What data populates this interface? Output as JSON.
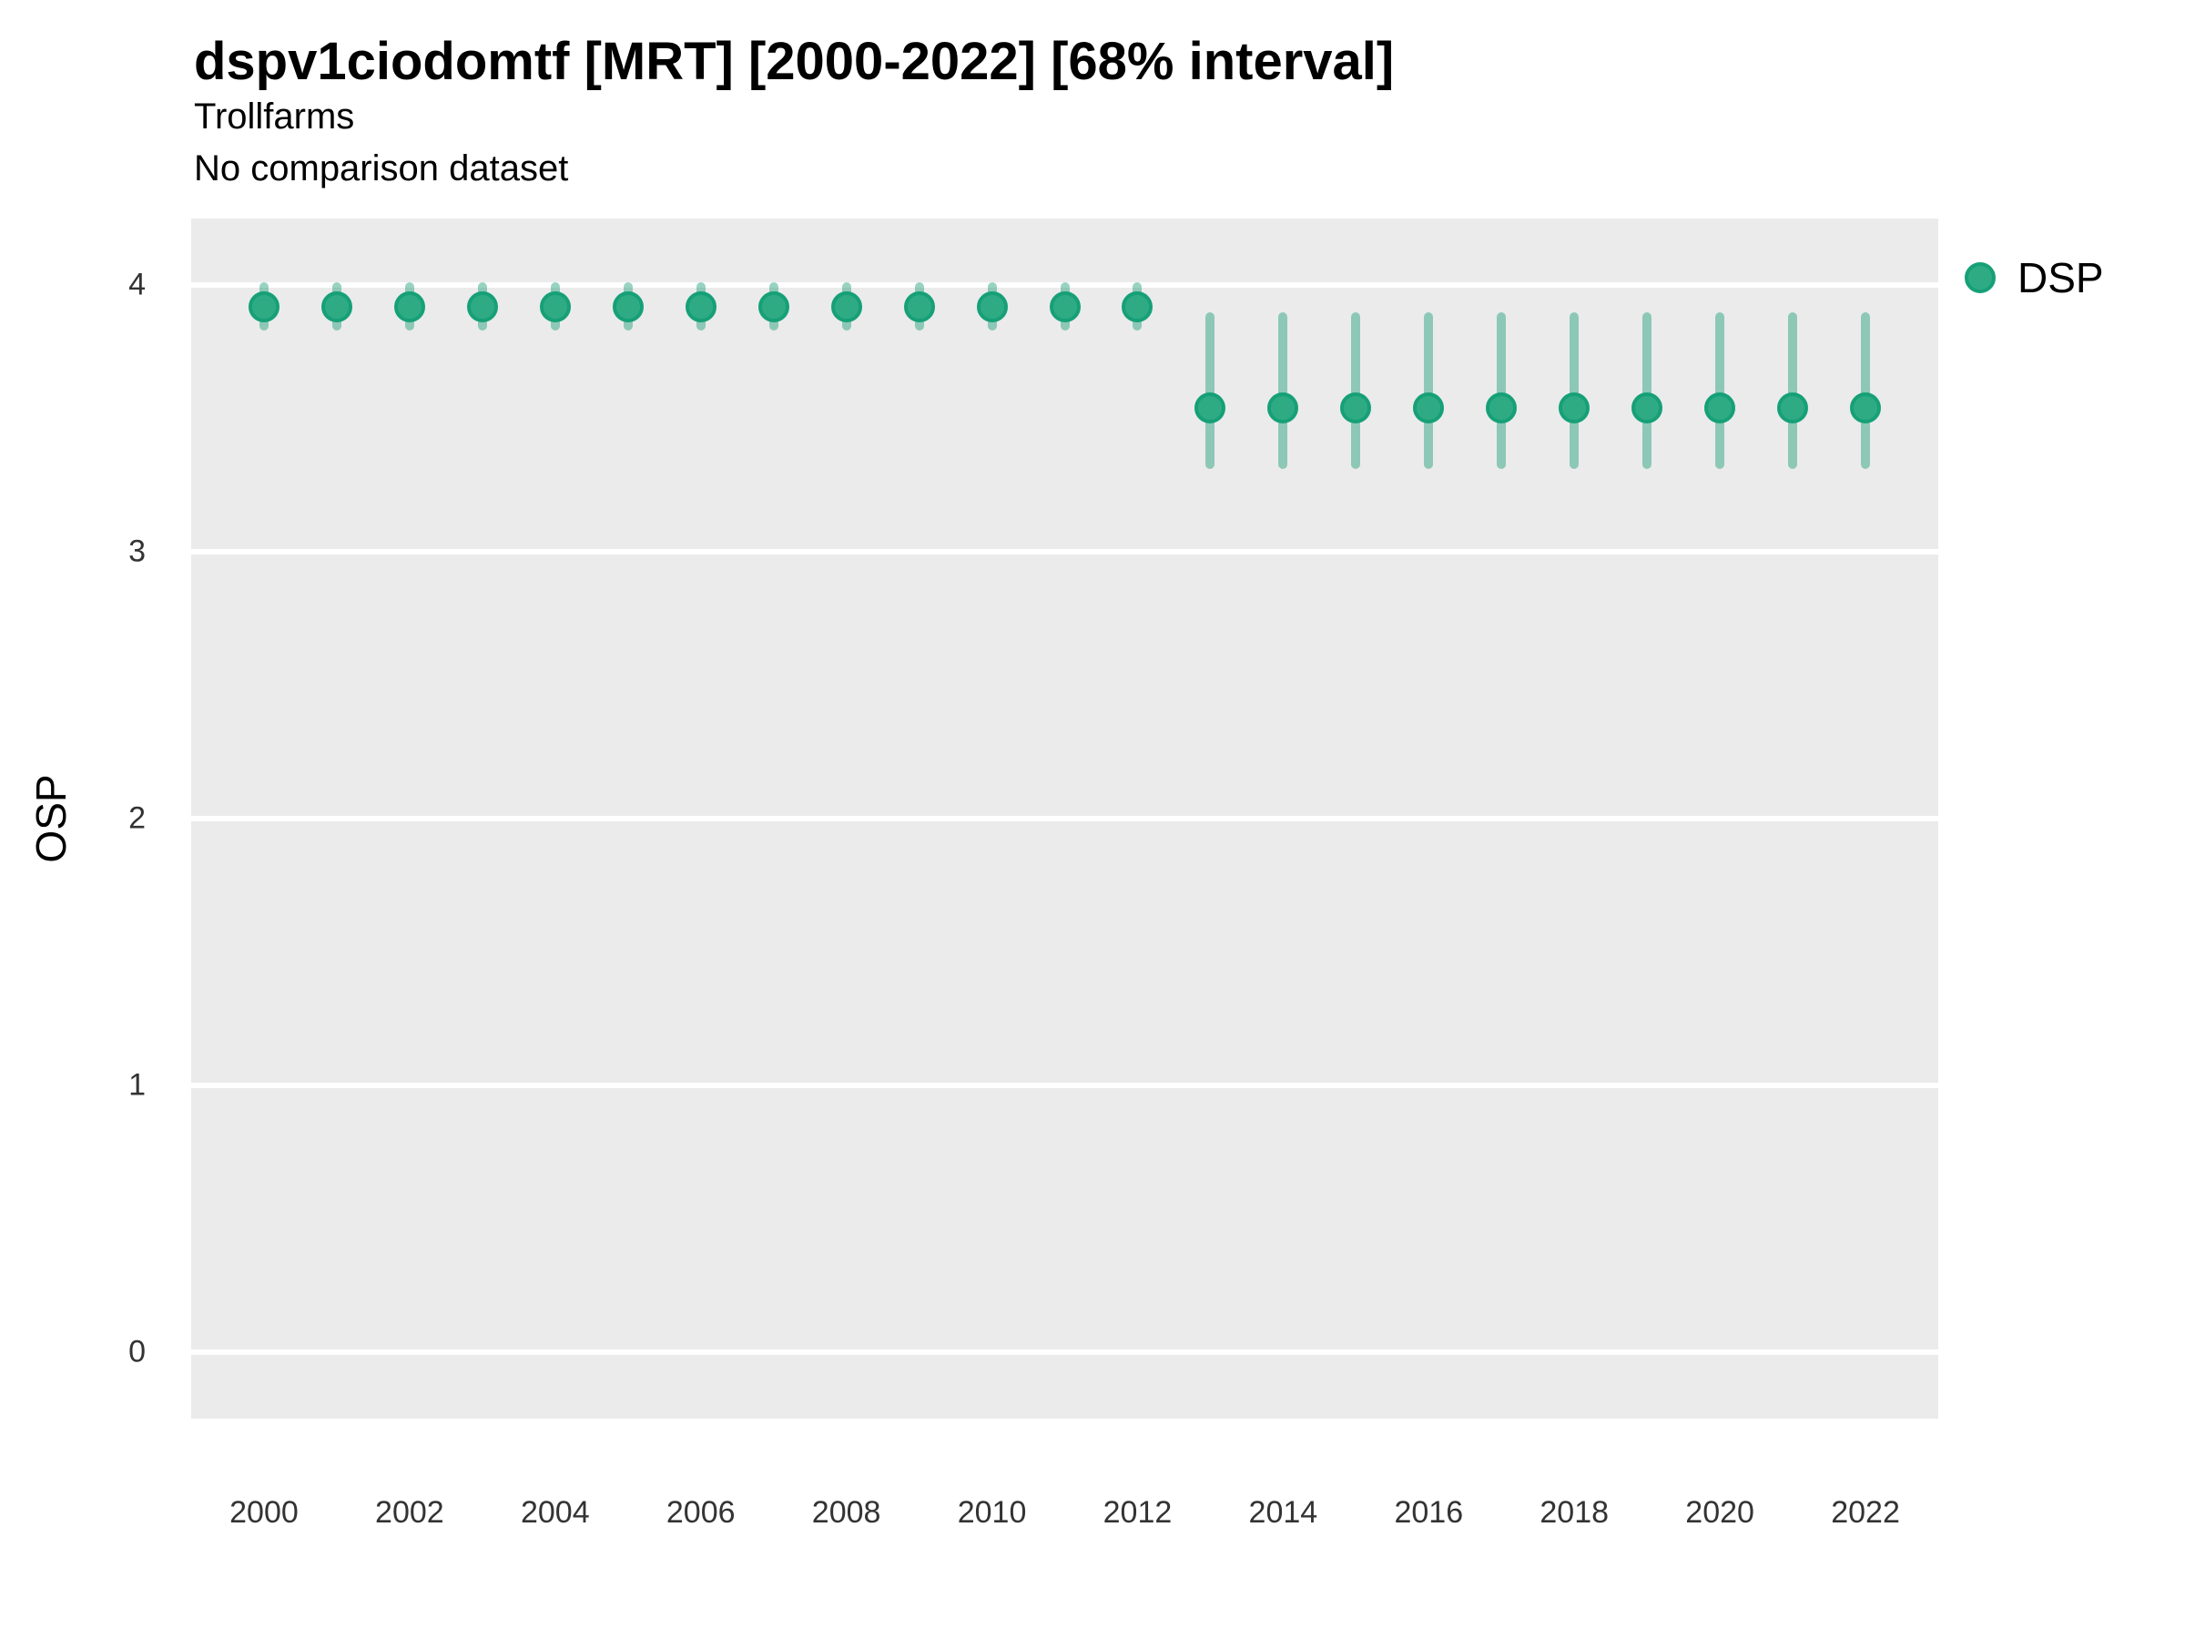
{
  "header": {
    "title": "dspv1ciodomtf [MRT] [2000-2022] [68% interval]",
    "subtitle": "Trollfarms",
    "note": "No comparison dataset"
  },
  "legend": {
    "position": "right-top",
    "items": [
      {
        "label": "DSP",
        "fill": "#2FAB84",
        "stroke": "#16A077"
      }
    ]
  },
  "colors": {
    "panel_background": "#EBEBEB",
    "gridline": "#FFFFFF",
    "point_fill": "#2FAB84",
    "point_stroke": "#16A077",
    "errorbar": "rgba(27,158,119,0.45)",
    "tick_text": "#333333",
    "title_text": "#000000"
  },
  "chart_data": {
    "type": "scatter",
    "title": "dspv1ciodomtf [MRT] [2000-2022] [68% interval]",
    "subtitle": "Trollfarms",
    "note": "No comparison dataset",
    "xlabel": "",
    "ylabel": "OSP",
    "x": [
      2000,
      2001,
      2002,
      2003,
      2004,
      2005,
      2006,
      2007,
      2008,
      2009,
      2010,
      2011,
      2012,
      2013,
      2014,
      2015,
      2016,
      2017,
      2018,
      2019,
      2020,
      2021,
      2022
    ],
    "series": [
      {
        "name": "DSP",
        "values": [
          3.92,
          3.92,
          3.92,
          3.92,
          3.92,
          3.92,
          3.92,
          3.92,
          3.92,
          3.92,
          3.92,
          3.92,
          3.92,
          3.54,
          3.54,
          3.54,
          3.54,
          3.54,
          3.54,
          3.54,
          3.54,
          3.54,
          3.54
        ],
        "interval_low": [
          3.83,
          3.83,
          3.83,
          3.83,
          3.83,
          3.83,
          3.83,
          3.83,
          3.83,
          3.83,
          3.83,
          3.83,
          3.83,
          3.31,
          3.31,
          3.31,
          3.31,
          3.31,
          3.31,
          3.31,
          3.31,
          3.31,
          3.31
        ],
        "interval_high": [
          4.01,
          4.01,
          4.01,
          4.01,
          4.01,
          4.01,
          4.01,
          4.01,
          4.01,
          4.01,
          4.01,
          4.01,
          4.01,
          3.9,
          3.9,
          3.9,
          3.9,
          3.9,
          3.9,
          3.9,
          3.9,
          3.9,
          3.9
        ],
        "interval": "68%"
      }
    ],
    "xticks": [
      2000,
      2002,
      2004,
      2006,
      2008,
      2010,
      2012,
      2014,
      2016,
      2018,
      2020,
      2022
    ],
    "yticks": [
      0,
      1,
      2,
      3,
      4
    ],
    "xlim": [
      1999,
      2023
    ],
    "ylim": [
      -0.25,
      4.25
    ],
    "grid": "horizontal-major-only",
    "legend_position": "right-top"
  }
}
